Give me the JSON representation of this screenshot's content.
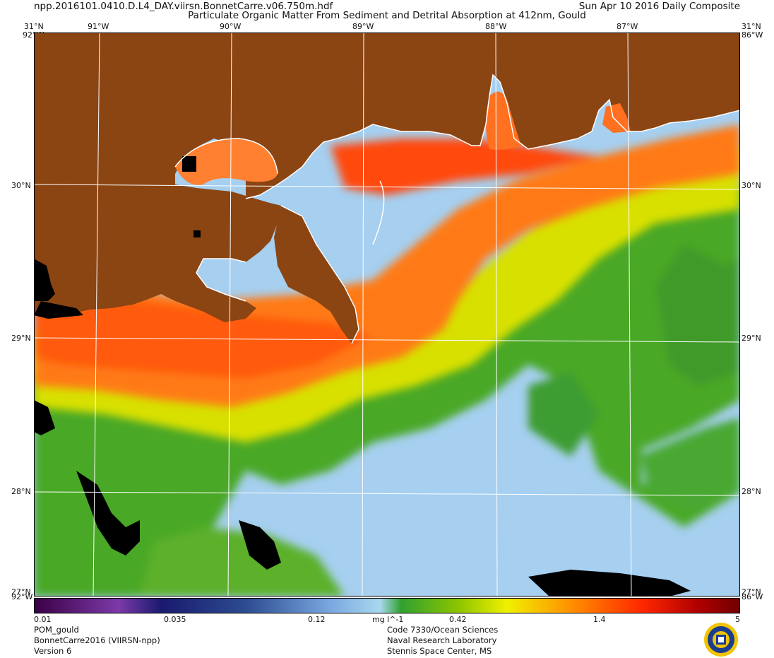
{
  "header": {
    "file_title": "npp.2016101.0410.D.L4_DAY.viirsn.BonnetCarre.v06.750m.hdf",
    "date_title": "Sun Apr 10 2016 Daily Composite",
    "main_title": "Particulate Organic Matter From Sediment and Detrital Absorption at 412nm, Gould"
  },
  "map": {
    "lat_labels": [
      "31°N",
      "30°N",
      "29°N",
      "28°N"
    ],
    "lon_labels": [
      "91°W",
      "90°W",
      "89°W",
      "88°W",
      "87°W"
    ],
    "corner_labels": {
      "top_left": "31°N",
      "top_left_lon": "92°W",
      "top_right": "31°N",
      "top_right_lon": "86°W",
      "bottom_left": "27°N",
      "bottom_left_lon": "92°W",
      "bottom_right": "27°N",
      "bottom_right_lon": "86°W"
    },
    "land_color": "#8b4513",
    "missing_color": "#000000",
    "grid_color": "#ffffff"
  },
  "colorbar": {
    "scale": "log",
    "ticks": [
      "0.01",
      "0.035",
      "0.12",
      "mg l^-1",
      "0.42",
      "1.4",
      "5"
    ],
    "stops": [
      "#3a0045",
      "#7b3aa8",
      "#1a1a6e",
      "#2c4c90",
      "#7aa8e0",
      "#a8d8ee",
      "#30a030",
      "#8cc400",
      "#f0f000",
      "#ff9000",
      "#ff2800",
      "#b00000",
      "#700000"
    ]
  },
  "footer": {
    "left": [
      "POM_gould",
      "BonnetCarre2016 (VIIRSN-npp)",
      "Version 6"
    ],
    "center": [
      "Code 7330/Ocean Sciences",
      "Naval Research Laboratory",
      "Stennis Space Center, MS"
    ],
    "logo_icon": "nrl-seal-icon"
  }
}
